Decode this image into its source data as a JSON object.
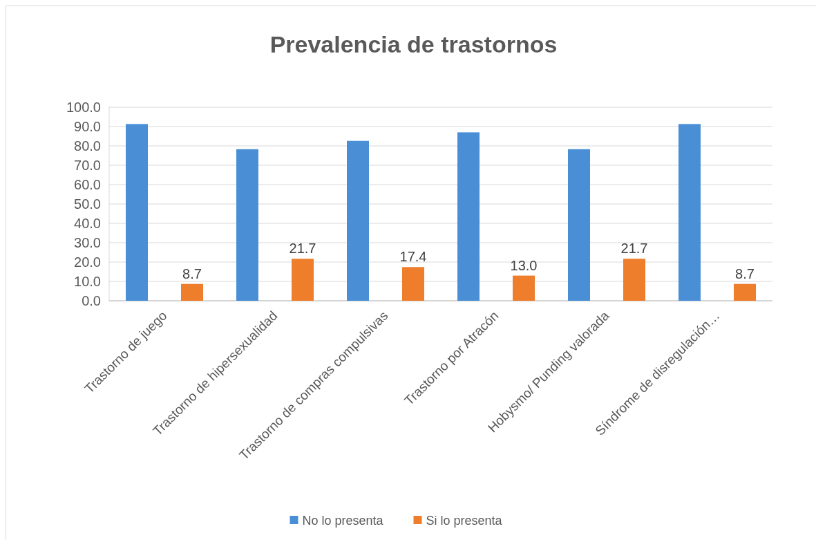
{
  "chart_data": {
    "type": "bar",
    "title": "Prevalencia de trastornos",
    "categories": [
      "Trastorno de juego",
      "Trastorno de hipersexualidad",
      "Trastorno de compras compulsivas",
      "Trastorno por Atracón",
      "Hobysmo/ Punding valorada",
      "Síndrome de disregulación…"
    ],
    "series": [
      {
        "name": "No lo presenta",
        "color": "#4a8fd6",
        "values": [
          91.3,
          78.3,
          82.6,
          87.0,
          78.3,
          91.3
        ]
      },
      {
        "name": "Si lo presenta",
        "color": "#ee7d2c",
        "values": [
          8.7,
          21.7,
          17.4,
          13.0,
          21.7,
          8.7
        ],
        "value_labels": [
          "8.7",
          "21.7",
          "17.4",
          "13.0",
          "21.7",
          "8.7"
        ]
      }
    ],
    "ylim": [
      0,
      100
    ],
    "yticks": [
      {
        "value": 0,
        "label": "0.0"
      },
      {
        "value": 10,
        "label": "10.0"
      },
      {
        "value": 20,
        "label": "20.0"
      },
      {
        "value": 30,
        "label": "30.0"
      },
      {
        "value": 40,
        "label": "40.0"
      },
      {
        "value": 50,
        "label": "50.0"
      },
      {
        "value": 60,
        "label": "60.0"
      },
      {
        "value": 70,
        "label": "70.0"
      },
      {
        "value": 80,
        "label": "80.0"
      },
      {
        "value": 90,
        "label": "90.0"
      },
      {
        "value": 100,
        "label": "100.0"
      }
    ],
    "grid": "y",
    "legend": "bottom"
  }
}
